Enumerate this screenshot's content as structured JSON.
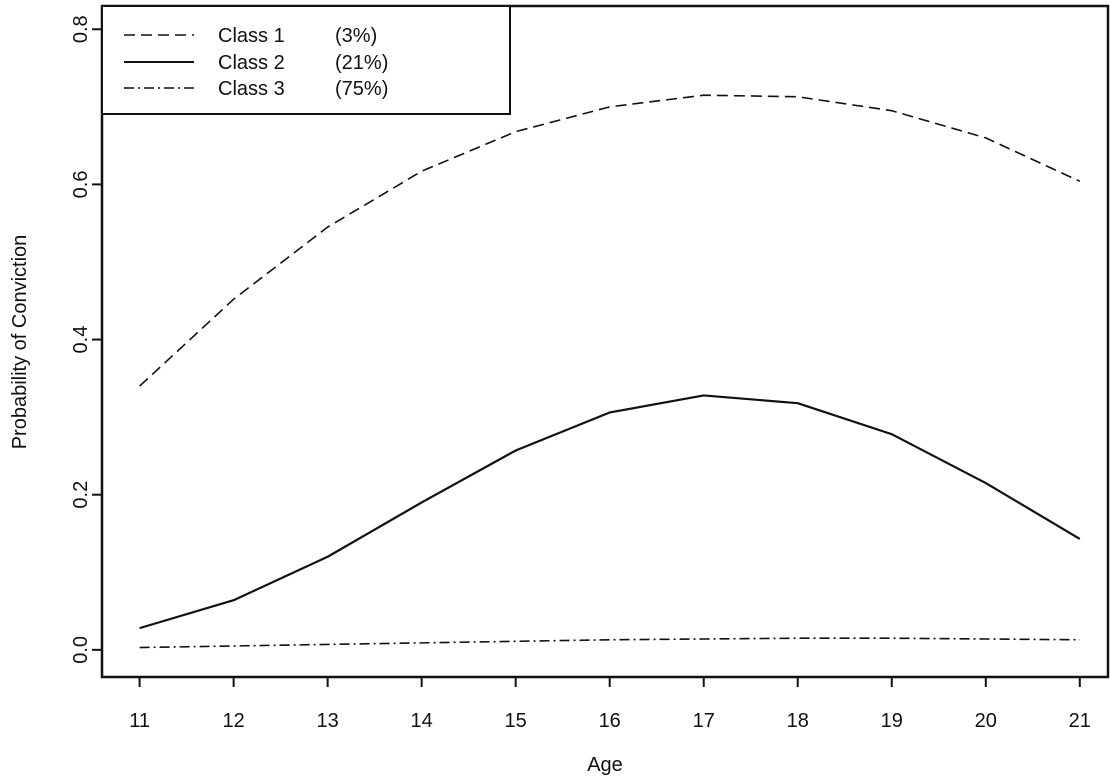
{
  "chart_data": {
    "type": "line",
    "title": "",
    "xlabel": "Age",
    "ylabel": "Probability of Conviction",
    "x": [
      11,
      12,
      13,
      14,
      15,
      16,
      17,
      18,
      19,
      20,
      21
    ],
    "xlim": [
      10.6,
      21.3
    ],
    "ylim": [
      -0.035,
      0.83
    ],
    "x_ticks": [
      "11",
      "12",
      "13",
      "14",
      "15",
      "16",
      "17",
      "18",
      "19",
      "20",
      "21"
    ],
    "y_ticks": [
      "0.0",
      "0.2",
      "0.4",
      "0.6",
      "0.8"
    ],
    "grid": false,
    "legend_position": "top-left",
    "series": [
      {
        "name": "Class 1",
        "share": "(3%)",
        "line_style": "dashed",
        "values": [
          0.34,
          0.452,
          0.545,
          0.617,
          0.668,
          0.7,
          0.715,
          0.713,
          0.695,
          0.66,
          0.604
        ]
      },
      {
        "name": "Class 2",
        "share": "(21%)",
        "line_style": "solid",
        "values": [
          0.028,
          0.064,
          0.12,
          0.19,
          0.257,
          0.306,
          0.328,
          0.318,
          0.278,
          0.215,
          0.143
        ]
      },
      {
        "name": "Class 3",
        "share": "(75%)",
        "line_style": "dash-dot",
        "values": [
          0.003,
          0.005,
          0.007,
          0.009,
          0.011,
          0.013,
          0.014,
          0.015,
          0.015,
          0.014,
          0.013
        ]
      }
    ]
  },
  "colors": {
    "line": "#111111",
    "background": "#ffffff"
  }
}
